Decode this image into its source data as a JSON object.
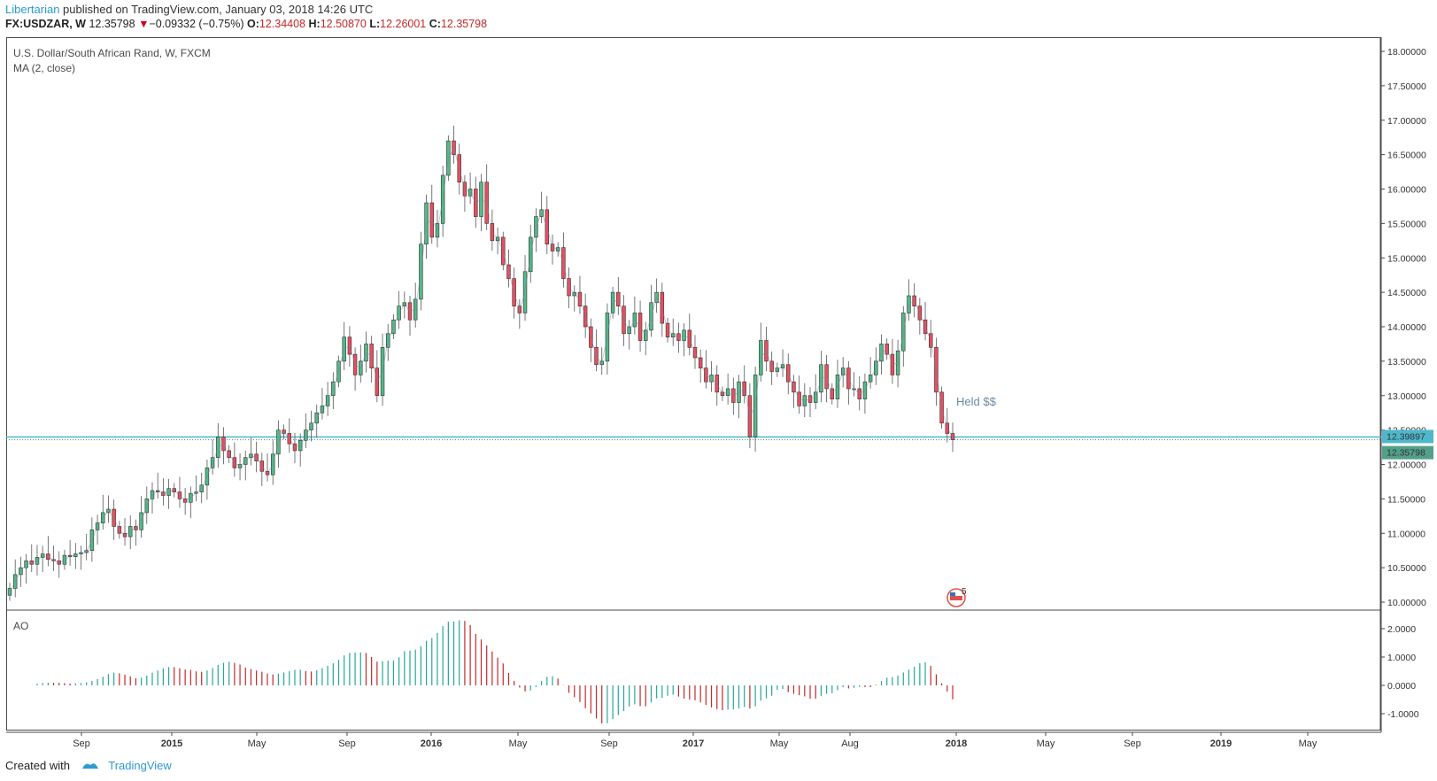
{
  "header": {
    "author": "Libertarian",
    "published_text": " published on TradingView.com, January 03, 2018 14:26 UTC"
  },
  "quote": {
    "symbol": "FX:USDZAR, W",
    "price": "12.35798",
    "arrow": "▼",
    "change": "−0.09332 (−0.75%)",
    "open_label": "O:",
    "open": "12.34408",
    "high_label": "H:",
    "high": "12.50870",
    "low_label": "L:",
    "low": "12.26001",
    "close_label": "C:",
    "close": "12.35798"
  },
  "footer": {
    "created_with": "Created with",
    "brand": "TradingView"
  },
  "colors": {
    "up": "#53b987",
    "down": "#eb4d5c",
    "ao_up": "#26a69a",
    "ao_down": "#c62828",
    "hline": "#4fb7cc",
    "price_badge": "#53a08a"
  },
  "chart_data": [
    {
      "type": "candlestick",
      "title": "U.S. Dollar/South African Rand, W, FXCM",
      "indicator": "MA (2, close)",
      "ylim": [
        10.0,
        18.0
      ],
      "y_ticks": [
        "18.00000",
        "17.50000",
        "17.00000",
        "16.50000",
        "16.00000",
        "15.50000",
        "15.00000",
        "14.50000",
        "14.00000",
        "13.50000",
        "13.00000",
        "12.50000",
        "12.00000",
        "11.50000",
        "11.00000",
        "10.50000",
        "10.00000"
      ],
      "x_ticks": [
        {
          "label": "Sep",
          "bold": false
        },
        {
          "label": "2015",
          "bold": true
        },
        {
          "label": "May",
          "bold": false
        },
        {
          "label": "Sep",
          "bold": false
        },
        {
          "label": "2016",
          "bold": true
        },
        {
          "label": "May",
          "bold": false
        },
        {
          "label": "Sep",
          "bold": false
        },
        {
          "label": "2017",
          "bold": true
        },
        {
          "label": "May",
          "bold": false
        },
        {
          "label": "Aug",
          "bold": false
        },
        {
          "label": "2018",
          "bold": true
        },
        {
          "label": "May",
          "bold": false
        },
        {
          "label": "Sep",
          "bold": false
        },
        {
          "label": "2019",
          "bold": true
        },
        {
          "label": "May",
          "bold": false
        }
      ],
      "horizontal_line": {
        "value": 12.39897,
        "label": "12.39897"
      },
      "last_price": {
        "value": 12.35798,
        "label": "12.35798"
      },
      "annotation": "Held $$",
      "event_badge": "5",
      "closes": [
        10.2,
        10.4,
        10.5,
        10.6,
        10.55,
        10.65,
        10.7,
        10.62,
        10.6,
        10.55,
        10.68,
        10.66,
        10.7,
        10.72,
        10.75,
        11.05,
        11.15,
        11.3,
        11.35,
        11.1,
        11.0,
        10.95,
        11.1,
        11.05,
        11.3,
        11.5,
        11.62,
        11.6,
        11.55,
        11.65,
        11.6,
        11.5,
        11.45,
        11.58,
        11.6,
        11.7,
        11.95,
        12.1,
        12.4,
        12.2,
        12.1,
        11.95,
        12.0,
        12.1,
        12.15,
        12.05,
        11.9,
        11.85,
        12.15,
        12.5,
        12.45,
        12.3,
        12.2,
        12.35,
        12.5,
        12.6,
        12.75,
        12.85,
        13.0,
        13.2,
        13.5,
        13.85,
        13.6,
        13.3,
        13.5,
        13.75,
        13.4,
        13.0,
        13.7,
        13.9,
        14.1,
        14.3,
        14.35,
        14.1,
        14.4,
        15.2,
        15.8,
        15.3,
        15.5,
        16.2,
        16.7,
        16.5,
        16.1,
        15.9,
        16.0,
        15.6,
        16.1,
        15.5,
        15.25,
        15.3,
        14.9,
        14.7,
        14.3,
        14.2,
        14.8,
        15.3,
        15.6,
        15.7,
        15.2,
        15.1,
        15.15,
        14.7,
        14.45,
        14.5,
        14.3,
        14.0,
        13.7,
        13.45,
        13.5,
        14.2,
        14.5,
        14.3,
        13.9,
        14.0,
        14.2,
        13.8,
        13.95,
        14.35,
        14.5,
        14.05,
        13.85,
        13.9,
        13.8,
        13.95,
        13.7,
        13.55,
        13.4,
        13.2,
        13.3,
        13.05,
        13.0,
        13.1,
        12.9,
        13.2,
        13.0,
        12.4,
        13.3,
        13.8,
        13.5,
        13.35,
        13.4,
        13.45,
        13.2,
        13.05,
        12.85,
        13.0,
        12.9,
        13.05,
        13.45,
        13.1,
        12.95,
        13.3,
        13.4,
        13.1,
        13.1,
        12.95,
        13.2,
        13.3,
        13.5,
        13.75,
        13.6,
        13.3,
        13.65,
        14.2,
        14.45,
        14.3,
        14.1,
        13.9,
        13.7,
        13.05,
        12.6,
        12.45,
        12.36
      ],
      "ao": {
        "ylim": [
          -1.5,
          2.5
        ],
        "y_ticks": [
          "2.0000",
          "1.0000",
          "0.0000",
          "-1.0000"
        ],
        "label": "AO"
      }
    }
  ]
}
